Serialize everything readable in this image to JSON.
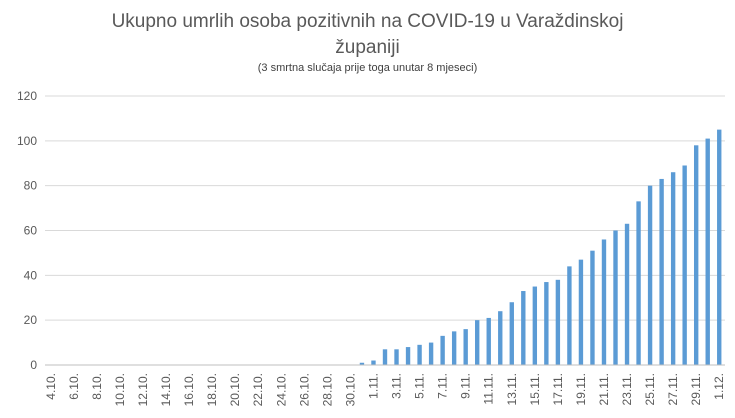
{
  "chart_data": {
    "type": "bar",
    "title_line1": "Ukupno umrlih osoba pozitivnih na COVID-19 u Varaždinskoj",
    "title_line2": "županiji",
    "subtitle": "(3 smrtna slučaja prije toga unutar 8 mjeseci)",
    "xlabel": "",
    "ylabel": "",
    "ylim": [
      0,
      120
    ],
    "yticks": [
      "0",
      "20",
      "40",
      "60",
      "80",
      "100",
      "120"
    ],
    "grid": true,
    "legend": "none",
    "bar_color": "#5B9BD5",
    "categories": [
      "4.10.",
      "5.10.",
      "6.10.",
      "7.10.",
      "8.10.",
      "9.10.",
      "10.10.",
      "11.10.",
      "12.10.",
      "13.10.",
      "14.10.",
      "15.10.",
      "16.10.",
      "17.10.",
      "18.10.",
      "19.10.",
      "20.10.",
      "21.10.",
      "22.10.",
      "23.10.",
      "24.10.",
      "25.10.",
      "26.10.",
      "27.10.",
      "28.10.",
      "29.10.",
      "30.10.",
      "31.10.",
      "1.11.",
      "2.11.",
      "3.11.",
      "4.11.",
      "5.11.",
      "6.11.",
      "7.11.",
      "8.11.",
      "9.11.",
      "10.11.",
      "11.11.",
      "12.11.",
      "13.11.",
      "14.11.",
      "15.11.",
      "16.11.",
      "17.11.",
      "18.11.",
      "19.11.",
      "20.11.",
      "21.11.",
      "22.11.",
      "23.11.",
      "24.11.",
      "25.11.",
      "26.11.",
      "27.11.",
      "28.11.",
      "29.11.",
      "30.11.",
      "1.12."
    ],
    "xtick_labels": [
      "4.10.",
      "6.10.",
      "8.10.",
      "10.10.",
      "12.10.",
      "14.10.",
      "16.10.",
      "18.10.",
      "20.10.",
      "22.10.",
      "24.10.",
      "26.10.",
      "28.10.",
      "30.10.",
      "1.11.",
      "3.11.",
      "5.11.",
      "7.11.",
      "9.11.",
      "11.11.",
      "13.11.",
      "15.11.",
      "17.11.",
      "19.11.",
      "21.11.",
      "23.11.",
      "25.11.",
      "27.11.",
      "29.11.",
      "1.12."
    ],
    "values": [
      0,
      0,
      0,
      0,
      0,
      0,
      0,
      0,
      0,
      0,
      0,
      0,
      0,
      0,
      0,
      0,
      0,
      0,
      0,
      0,
      0,
      0,
      0,
      0,
      0,
      0,
      0,
      1,
      2,
      7,
      7,
      8,
      9,
      10,
      13,
      15,
      16,
      20,
      21,
      24,
      28,
      33,
      35,
      37,
      38,
      44,
      47,
      51,
      56,
      60,
      63,
      73,
      80,
      83,
      86,
      89,
      98,
      101,
      105
    ]
  }
}
